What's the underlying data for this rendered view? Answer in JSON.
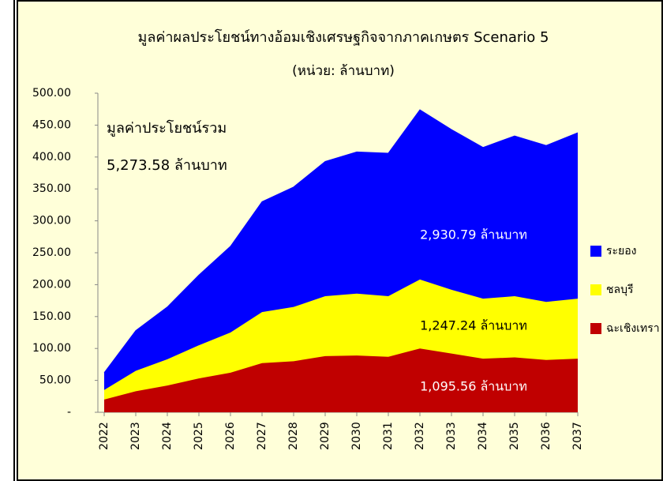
{
  "chart_data": {
    "type": "stacked_area",
    "title": "มูลค่าผลประโยชน์ทางอ้อมเชิงเศรษฐกิจจากภาคเกษตร Scenario 5",
    "subtitle": "(หน่วย: ล้านบาท)",
    "categories": [
      "2022",
      "2023",
      "2024",
      "2025",
      "2026",
      "2027",
      "2028",
      "2029",
      "2030",
      "2031",
      "2032",
      "2033",
      "2034",
      "2035",
      "2036",
      "2037"
    ],
    "series": [
      {
        "name": "ฉะเชิงเทรา",
        "color": "#c00000",
        "values": [
          20,
          33,
          42,
          53,
          62,
          77,
          80,
          88,
          89,
          87,
          100,
          92,
          84,
          86,
          82,
          84
        ]
      },
      {
        "name": "ชลบุรี",
        "color": "#ffff00",
        "values": [
          15,
          32,
          41,
          52,
          63,
          80,
          85,
          94,
          97,
          95,
          108,
          100,
          94,
          96,
          91,
          94
        ]
      },
      {
        "name": "ระยอง",
        "color": "#0000ff",
        "values": [
          27,
          63,
          82,
          110,
          135,
          173,
          188,
          211,
          222,
          224,
          266,
          251,
          237,
          251,
          245,
          260
        ]
      }
    ],
    "annotations": [
      "มูลค่าประโยชน์รวม",
      "5,273.58 ล้านบาท",
      "2,930.79 ล้านบาท",
      "1,247.24 ล้านบาท",
      "1,095.56 ล้านบาท"
    ],
    "ylim": [
      0,
      500
    ],
    "yticks": [
      {
        "value": 0,
        "label": "-"
      },
      {
        "value": 50,
        "label": "50.00"
      },
      {
        "value": 100,
        "label": "100.00"
      },
      {
        "value": 150,
        "label": "150.00"
      },
      {
        "value": 200,
        "label": "200.00"
      },
      {
        "value": 250,
        "label": "250.00"
      },
      {
        "value": 300,
        "label": "300.00"
      },
      {
        "value": 350,
        "label": "350.00"
      },
      {
        "value": 400,
        "label": "400.00"
      },
      {
        "value": 450,
        "label": "450.00"
      },
      {
        "value": 500,
        "label": "500.00"
      }
    ],
    "legend": "right"
  }
}
